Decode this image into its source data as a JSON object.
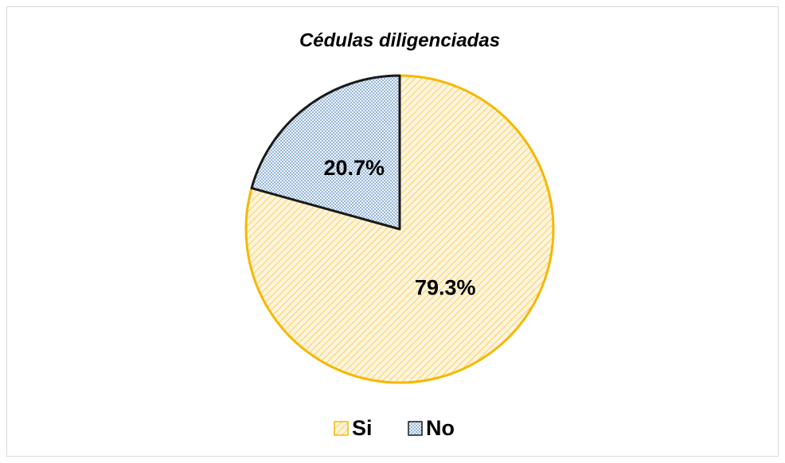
{
  "chart_data": {
    "type": "pie",
    "title": "Cédulas diligenciadas",
    "categories": [
      "Si",
      "No"
    ],
    "values": [
      79.3,
      20.7
    ],
    "value_labels": [
      "79.3%",
      "20.7%"
    ],
    "colors": [
      "#f5b800",
      "#5b8fc7"
    ],
    "edge_colors": [
      "#f5b800",
      "#1a1a1a"
    ],
    "legend": "bottom"
  }
}
